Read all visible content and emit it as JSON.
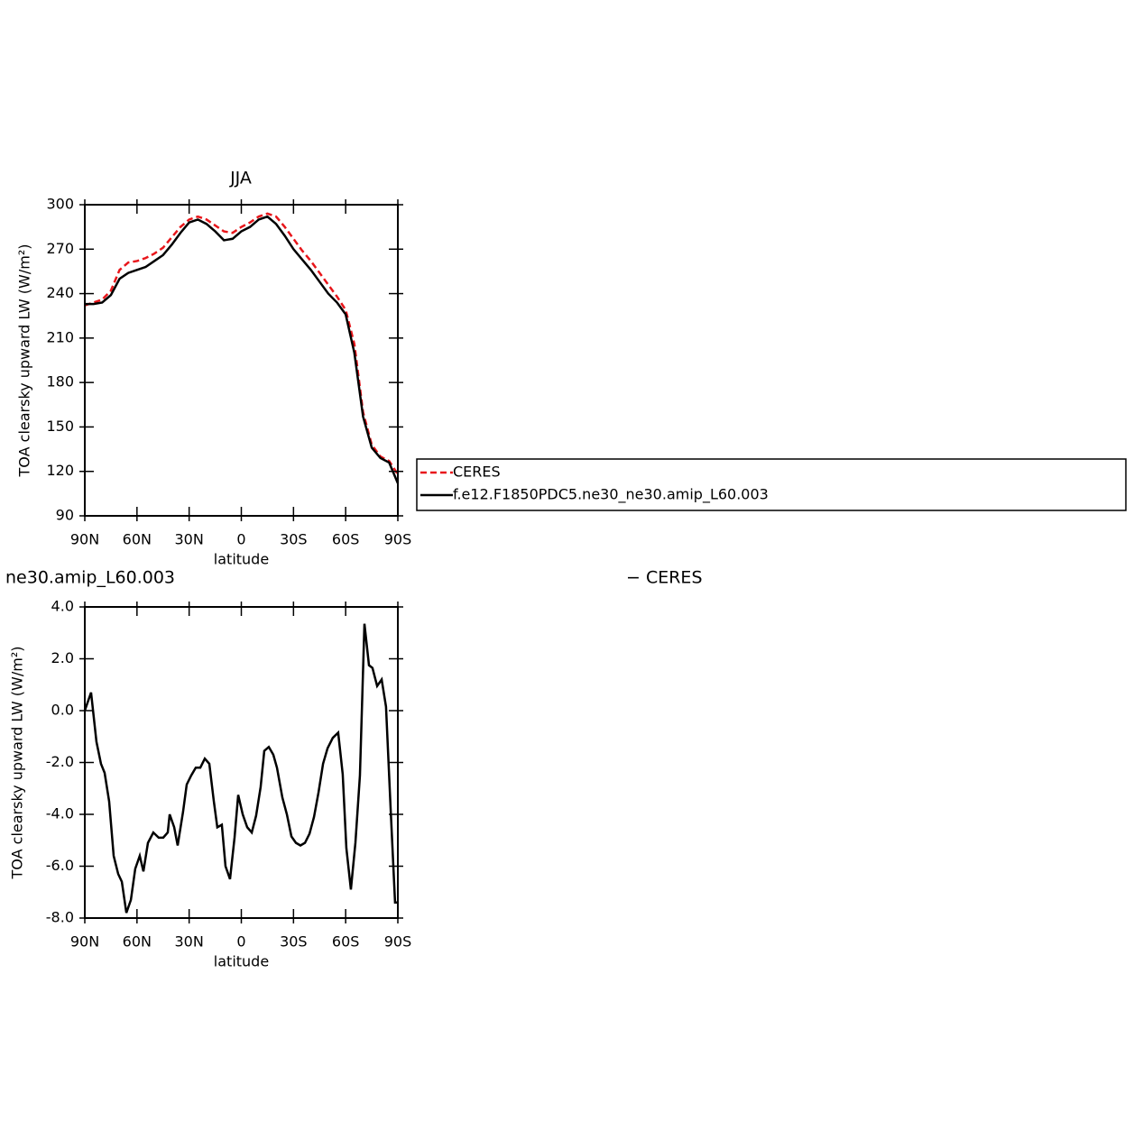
{
  "chart_data": [
    {
      "type": "line",
      "title": "JJA",
      "xlabel": "latitude",
      "ylabel": "TOA clearsky upward LW (W/m²)",
      "x": [
        90,
        85,
        80,
        75,
        70,
        65,
        60,
        55,
        50,
        45,
        40,
        35,
        30,
        25,
        20,
        15,
        10,
        5,
        0,
        -5,
        -10,
        -15,
        -20,
        -25,
        -30,
        -35,
        -40,
        -45,
        -50,
        -55,
        -60,
        -65,
        -70,
        -75,
        -80,
        -85,
        -90
      ],
      "series": [
        {
          "name": "CERES",
          "color": "#e8161b",
          "style": "dashed",
          "values": [
            232,
            234,
            236,
            242,
            256,
            261,
            262,
            264,
            267,
            271,
            278,
            285,
            290,
            292,
            290,
            286,
            282,
            281,
            285,
            288,
            292,
            294,
            292,
            285,
            277,
            269,
            262,
            254,
            246,
            238,
            229,
            206,
            160,
            138,
            130,
            127,
            118
          ]
        },
        {
          "name": "f.e12.F1850PDC5.ne30_ne30.amip_L60.003",
          "color": "#000000",
          "style": "solid",
          "values": [
            233,
            233,
            234,
            239,
            250,
            254,
            256,
            258,
            262,
            266,
            273,
            281,
            288,
            290,
            287,
            282,
            276,
            277,
            282,
            285,
            290,
            292,
            287,
            279,
            270,
            263,
            256,
            248,
            240,
            234,
            226,
            200,
            157,
            136,
            129,
            126,
            112
          ]
        }
      ],
      "xlim": [
        90,
        -90
      ],
      "xticks": [
        {
          "value": 90,
          "label": "90N"
        },
        {
          "value": 60,
          "label": "60N"
        },
        {
          "value": 30,
          "label": "30N"
        },
        0,
        {
          "value": -30,
          "label": "30S"
        },
        {
          "value": -60,
          "label": "60S"
        },
        {
          "value": -90,
          "label": "90S"
        }
      ],
      "ylim": [
        90,
        300
      ],
      "yticks": [
        90,
        120,
        150,
        180,
        210,
        240,
        270,
        300
      ]
    },
    {
      "type": "line",
      "title": "ne30.amip_L60.003",
      "title_right": "− CERES",
      "xlabel": "latitude",
      "ylabel": "TOA clearsky upward LW (W/m²)",
      "x": [
        90,
        86.4,
        83.3,
        80.7,
        78.6,
        76,
        73.4,
        70.8,
        68.7,
        66.1,
        63.5,
        61,
        58.4,
        56.3,
        53.7,
        50.6,
        47.5,
        44.9,
        42.3,
        41.2,
        38.6,
        36.6,
        33.5,
        31.4,
        28.8,
        26.2,
        23.6,
        21,
        18.4,
        15.8,
        13.8,
        11.2,
        9.1,
        6.5,
        3.9,
        1.8,
        -0.8,
        -3.4,
        -6,
        -8.5,
        -11.1,
        -13.2,
        -15.8,
        -18.4,
        -20.5,
        -23.6,
        -26.2,
        -28.8,
        -31.4,
        -34,
        -36.6,
        -39.2,
        -41.8,
        -44.4,
        -47,
        -49.6,
        -52.6,
        -55.7,
        -58.3,
        -60.4,
        -63,
        -65.6,
        -68.2,
        -70.8,
        -73.4,
        -75.4,
        -78.1,
        -80.7,
        -83.2,
        -85.8,
        -88.4,
        -90
      ],
      "color": "#000000",
      "values": [
        0,
        0.7,
        -1.2,
        -2.05,
        -2.4,
        -3.5,
        -5.6,
        -6.3,
        -6.6,
        -7.8,
        -7.3,
        -6.1,
        -5.6,
        -6.2,
        -5.1,
        -4.7,
        -4.9,
        -4.9,
        -4.7,
        -4,
        -4.5,
        -5.2,
        -3.9,
        -2.85,
        -2.5,
        -2.2,
        -2.2,
        -1.85,
        -2.05,
        -3.5,
        -4.5,
        -4.4,
        -6,
        -6.5,
        -4.9,
        -3.25,
        -4,
        -4.5,
        -4.7,
        -4.05,
        -2.95,
        -1.55,
        -1.4,
        -1.7,
        -2.2,
        -3.35,
        -4,
        -4.85,
        -5.1,
        -5.2,
        -5.1,
        -4.75,
        -4.1,
        -3.15,
        -2.05,
        -1.45,
        -1.05,
        -0.85,
        -2.45,
        -5.3,
        -6.9,
        -5.1,
        -2.5,
        3.35,
        1.75,
        1.65,
        0.95,
        1.2,
        0.15,
        -3.7,
        -7.4,
        -7.4
      ],
      "xlim": [
        90,
        -90
      ],
      "xticks": [
        {
          "value": 90,
          "label": "90N"
        },
        {
          "value": 60,
          "label": "60N"
        },
        {
          "value": 30,
          "label": "30N"
        },
        0,
        {
          "value": -30,
          "label": "30S"
        },
        {
          "value": -60,
          "label": "60S"
        },
        {
          "value": -90,
          "label": "90S"
        }
      ],
      "ylim": [
        -8,
        4
      ],
      "yticks": [
        {
          "value": -8,
          "label": "-8.0"
        },
        {
          "value": -6,
          "label": "-6.0"
        },
        {
          "value": -4,
          "label": "-4.0"
        },
        {
          "value": -2,
          "label": "-2.0"
        },
        {
          "value": 0,
          "label": "0.0"
        },
        {
          "value": 2,
          "label": "2.0"
        },
        {
          "value": 4,
          "label": "4.0"
        }
      ]
    }
  ]
}
